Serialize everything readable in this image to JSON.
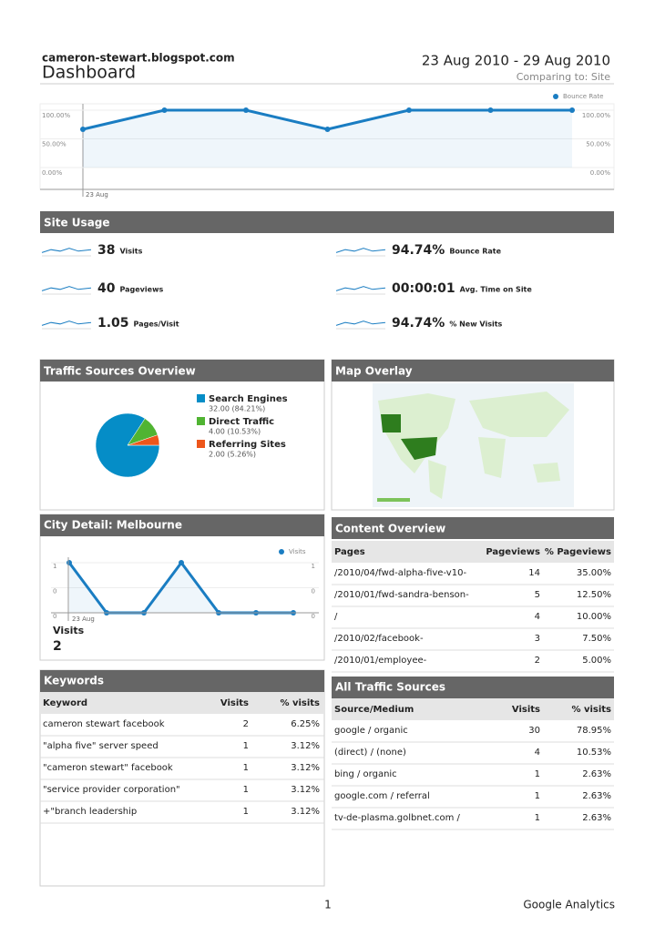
{
  "header": {
    "site": "cameron-stewart.blogspot.com",
    "title": "Dashboard",
    "date_range": "23 Aug 2010 - 29 Aug 2010",
    "comparing": "Comparing to: Site"
  },
  "bounce_chart": {
    "type": "line",
    "series": [
      {
        "name": "Bounce Rate",
        "color": "#1a7dc2",
        "values": [
          66.67,
          100,
          100,
          66.67,
          100,
          100,
          100
        ]
      }
    ],
    "x": [
      "23 Aug",
      null,
      null,
      null,
      null,
      null,
      null
    ],
    "ylim": [
      0,
      100
    ],
    "yticks": [
      {
        "value": 0,
        "label": "0.00%"
      },
      {
        "value": 50,
        "label": "50.00%"
      },
      {
        "value": 100,
        "label": "100.00%"
      }
    ]
  },
  "site_usage": {
    "title": "Site Usage",
    "metrics": [
      {
        "value": "38",
        "label": "Visits"
      },
      {
        "value": "40",
        "label": "Pageviews"
      },
      {
        "value": "1.05",
        "label": "Pages/Visit"
      },
      {
        "value": "94.74%",
        "label": "Bounce Rate"
      },
      {
        "value": "00:00:01",
        "label": "Avg. Time on Site"
      },
      {
        "value": "94.74%",
        "label": "% New Visits"
      }
    ]
  },
  "traffic_sources": {
    "title": "Traffic Sources Overview",
    "chart": {
      "type": "pie",
      "categories": [
        "Search Engines",
        "Direct Traffic",
        "Referring Sites"
      ],
      "values": [
        32,
        4,
        2
      ],
      "value_labels": [
        "32.00 (84.21%)",
        "4.00 (10.53%)",
        "2.00 (5.26%)"
      ],
      "colors": [
        "#058dc7",
        "#50b432",
        "#ed561b"
      ]
    }
  },
  "map_overlay": {
    "title": "Map Overlay"
  },
  "city_detail": {
    "title": "City Detail: Melbourne",
    "chart": {
      "type": "line",
      "series": [
        {
          "name": "Visits",
          "color": "#1a7dc2",
          "values": [
            1,
            0,
            0,
            1,
            0,
            0,
            0
          ]
        }
      ],
      "x": [
        "23 Aug",
        null,
        null,
        null,
        null,
        null,
        null
      ],
      "ylim": [
        0,
        1
      ],
      "yticks": [
        0,
        {
          "value": 0.5,
          "label": "0"
        },
        1
      ]
    },
    "metric": {
      "label": "Visits",
      "value": "2"
    }
  },
  "content_overview": {
    "title": "Content Overview",
    "columns": [
      "Pages",
      "Pageviews",
      "% Pageviews"
    ],
    "rows": [
      [
        "/2010/04/fwd-alpha-five-v10-",
        "14",
        "35.00%"
      ],
      [
        "/2010/01/fwd-sandra-benson-",
        "5",
        "12.50%"
      ],
      [
        "/",
        "4",
        "10.00%"
      ],
      [
        "/2010/02/facebook-",
        "3",
        "7.50%"
      ],
      [
        "/2010/01/employee-",
        "2",
        "5.00%"
      ]
    ]
  },
  "keywords": {
    "title": "Keywords",
    "columns": [
      "Keyword",
      "Visits",
      "% visits"
    ],
    "rows": [
      [
        "cameron stewart facebook",
        "2",
        "6.25%"
      ],
      [
        "\"alpha five\" server speed",
        "1",
        "3.12%"
      ],
      [
        "\"cameron stewart\" facebook",
        "1",
        "3.12%"
      ],
      [
        "\"service provider corporation\"",
        "1",
        "3.12%"
      ],
      [
        "+\"branch leadership",
        "1",
        "3.12%"
      ]
    ]
  },
  "all_traffic_sources": {
    "title": "All Traffic Sources",
    "columns": [
      "Source/Medium",
      "Visits",
      "% visits"
    ],
    "rows": [
      [
        "google / organic",
        "30",
        "78.95%"
      ],
      [
        "(direct) / (none)",
        "4",
        "10.53%"
      ],
      [
        "bing / organic",
        "1",
        "2.63%"
      ],
      [
        "google.com / referral",
        "1",
        "2.63%"
      ],
      [
        "tv-de-plasma.golbnet.com /",
        "1",
        "2.63%"
      ]
    ]
  },
  "footer": {
    "page": "1",
    "brand": "Google Analytics"
  }
}
